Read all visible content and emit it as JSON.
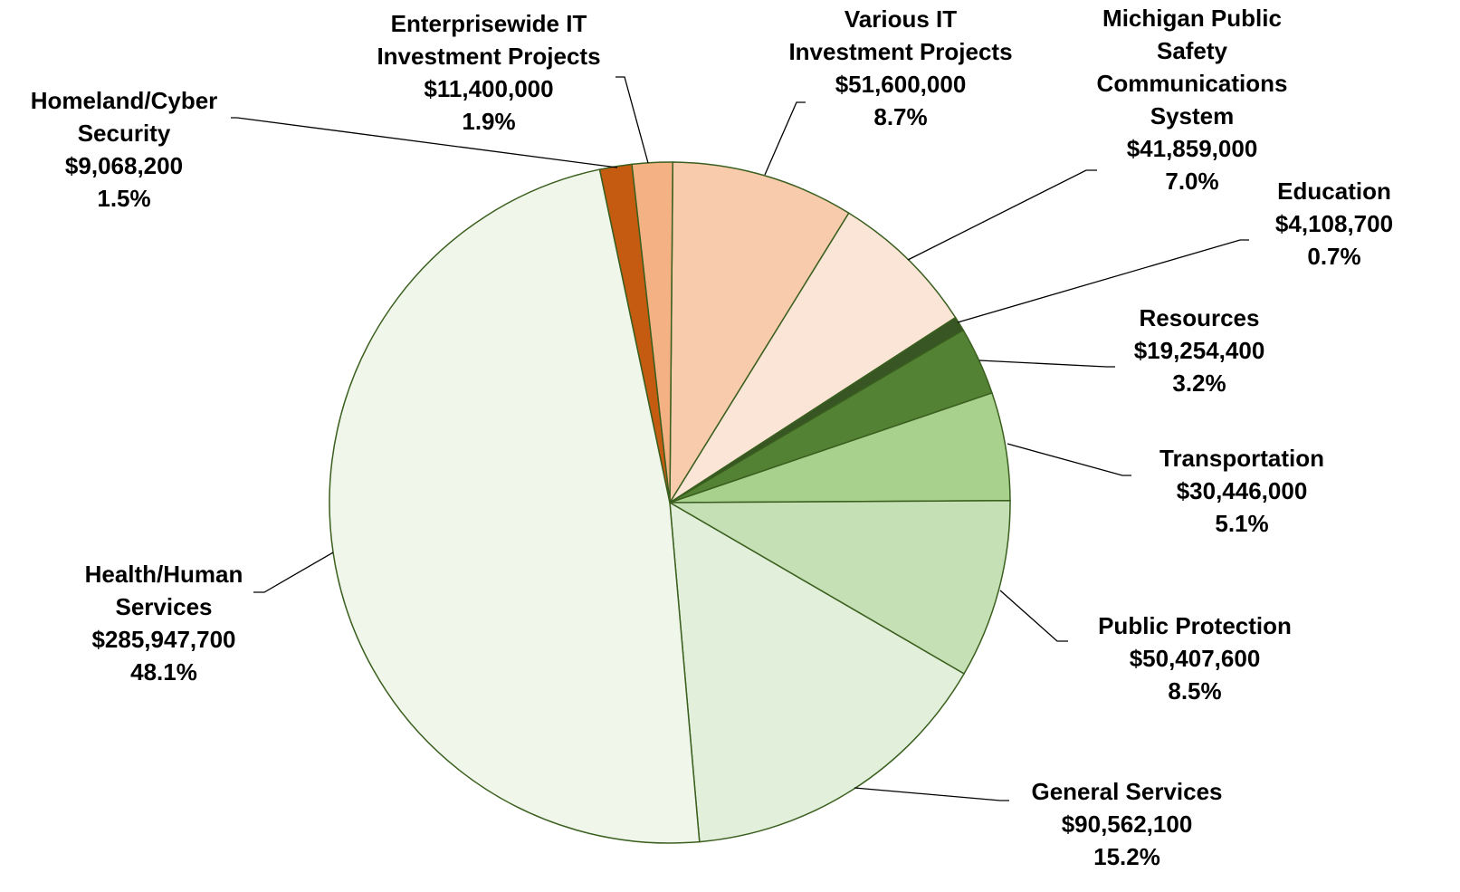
{
  "chart_data": {
    "type": "pie",
    "categories": [
      "Various IT\nInvestment Projects",
      "Michigan Public\nSafety\nCommunications\nSystem",
      "Education",
      "Resources",
      "Transportation",
      "Public Protection",
      "General Services",
      "Health/Human\nServices",
      "Homeland/Cyber\nSecurity",
      "Enterprisewide IT\nInvestment Projects"
    ],
    "values": [
      51600000,
      41859000,
      4108700,
      19254400,
      30446000,
      50407600,
      90562100,
      285947700,
      9068200,
      11400000
    ],
    "value_labels": [
      "$51,600,000",
      "$41,859,000",
      "$4,108,700",
      "$19,254,400",
      "$30,446,000",
      "$50,407,600",
      "$90,562,100",
      "$285,947,700",
      "$9,068,200",
      "$11,400,000"
    ],
    "percentages": [
      8.7,
      7.0,
      0.7,
      3.2,
      5.1,
      8.5,
      15.2,
      48.1,
      1.5,
      1.9
    ],
    "percentage_labels": [
      "8.7%",
      "7.0%",
      "0.7%",
      "3.2%",
      "5.1%",
      "8.5%",
      "15.2%",
      "48.1%",
      "1.5%",
      "1.9%"
    ],
    "colors": [
      "#f8cbad",
      "#fbe5d6",
      "#375623",
      "#548235",
      "#a9d18e",
      "#c5e0b4",
      "#e2efda",
      "#f0f7ea",
      "#c55a11",
      "#f4b183"
    ]
  }
}
